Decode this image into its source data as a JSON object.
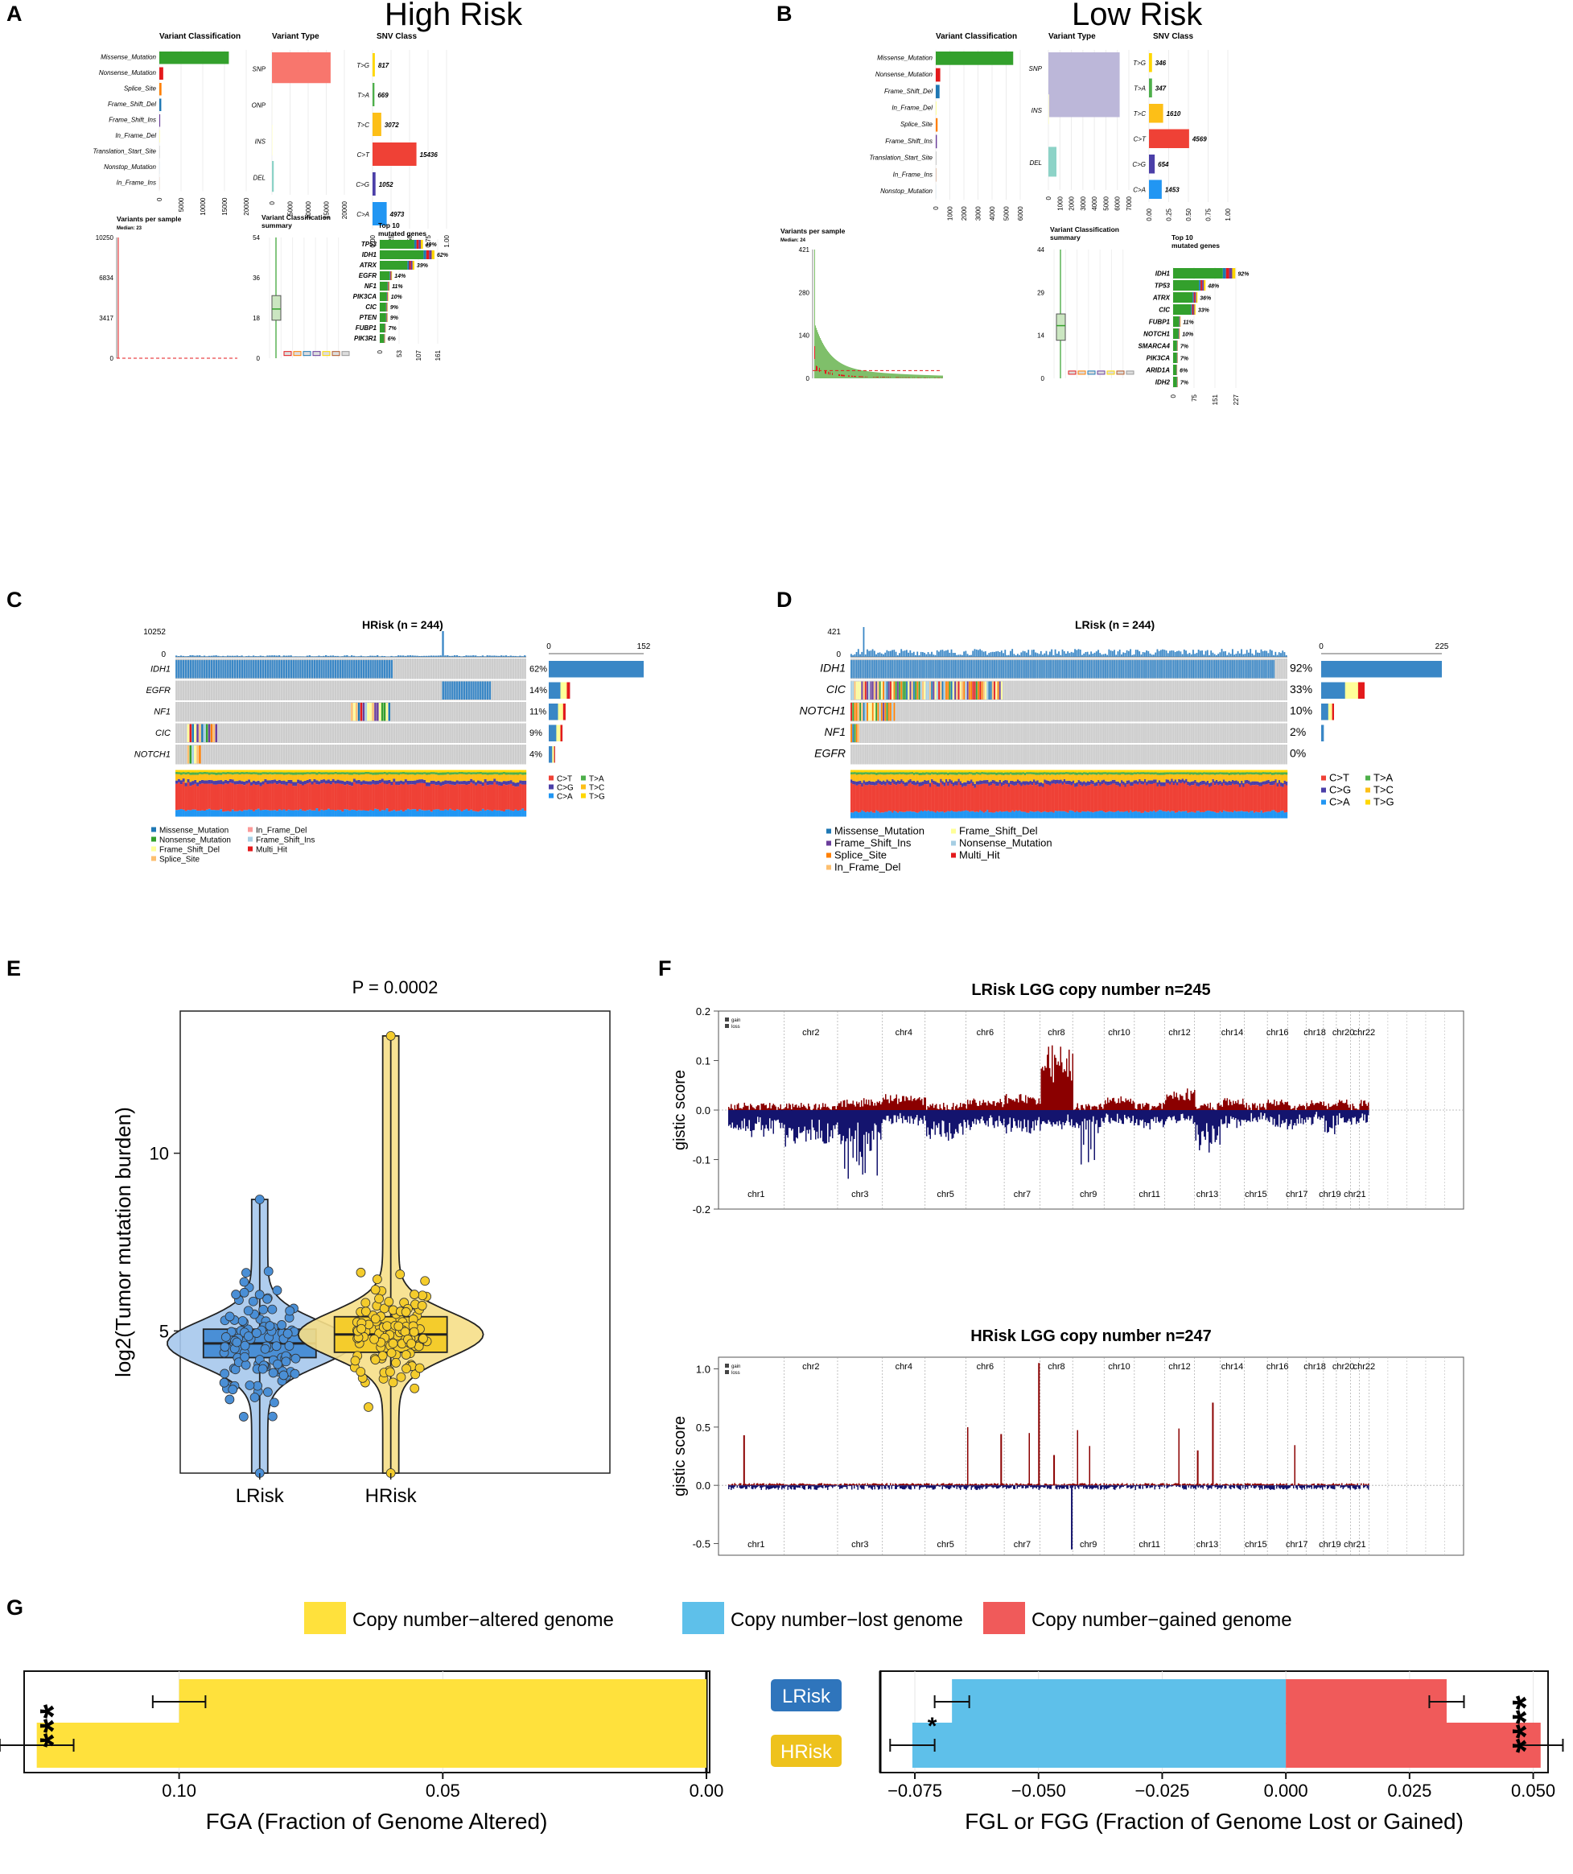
{
  "figure": {
    "panel_labels": [
      "A",
      "B",
      "C",
      "D",
      "E",
      "F",
      "G"
    ],
    "risk_titles": {
      "high": "High Risk",
      "low": "Low Risk"
    }
  },
  "subplot_titles": {
    "variant_classification": "Variant Classification",
    "variant_type": "Variant Type",
    "snv_class": "SNV Class",
    "variants_per_sample": "Variants per sample",
    "vc_summary_line1": "Variant Classification",
    "vc_summary_line2": "summary",
    "top10_line1": "Top 10",
    "top10_line2": "mutated genes"
  },
  "colors": {
    "Missense_Mutation": "#33a02c",
    "Nonsense_Mutation": "#e31a1c",
    "Splice_Site": "#ff7f00",
    "Frame_Shift_Del": "#1f78b4",
    "Frame_Shift_Ins": "#6a3d9a",
    "In_Frame_Del": "#ffff99",
    "In_Frame_Ins": "#b15928",
    "Translation_Start_Site": "#999999",
    "Nonstop_Mutation": "#a6cee3",
    "Multi_Hit": "#000000",
    "snp_high": "#f8766d",
    "snp_low": "#bcb7d9",
    "del": "#8dd3c7",
    "C>T": "#e41a1c",
    "C>G": "#377eb8",
    "C>A": "#4daf4a",
    "T>A": "#984ea3",
    "T>C": "#ff7f00",
    "T>G": "#ffff33",
    "oncoprint_bg": "#cccccc",
    "oncoprint_idh1": "#3a87c6",
    "fga": "#ffe13c",
    "lost": "#5ec0ea",
    "gained": "#f05a5a",
    "lrisk_box": "#4a8fd6",
    "hrisk_box": "#f4cc2c",
    "lrisk_badge": "#2f75bc",
    "hrisk_badge": "#eec21c",
    "gain": "#8b0000",
    "loss": "#14146e"
  },
  "panelA": {
    "title": "High Risk",
    "variant_classification": {
      "categories": [
        "Missense_Mutation",
        "Nonsense_Mutation",
        "Splice_Site",
        "Frame_Shift_Del",
        "Frame_Shift_Ins",
        "In_Frame_Del",
        "Translation_Start_Site",
        "Nonstop_Mutation",
        "In_Frame_Ins"
      ],
      "values": [
        16000,
        900,
        500,
        450,
        200,
        120,
        50,
        30,
        20
      ],
      "ticks": [
        "0",
        "5000",
        "10000",
        "15000",
        "20000"
      ],
      "xmax": 20000
    },
    "variant_type": {
      "categories": [
        "SNP",
        "ONP",
        "INS",
        "DEL"
      ],
      "values": [
        16200,
        20,
        150,
        500
      ],
      "ticks": [
        "0",
        "5000",
        "10000",
        "15000",
        "20000"
      ],
      "xmax": 20000
    },
    "snv_class": {
      "categories": [
        "T>G",
        "T>A",
        "T>C",
        "C>T",
        "C>G",
        "C>A"
      ],
      "values": [
        817,
        669,
        3072,
        15436,
        1052,
        4973
      ],
      "labels": [
        "817",
        "669",
        "3072",
        "15436",
        "1052",
        "4973"
      ],
      "ticks": [
        "0.00",
        "0.25",
        "0.50",
        "0.75",
        "1.00"
      ]
    },
    "vps": {
      "median": "Median: 23",
      "yticks": [
        "0",
        "3417",
        "6834",
        "10250"
      ],
      "ymax": 10250
    },
    "vcs": {
      "yticks": [
        "0",
        "18",
        "36",
        "54"
      ],
      "ymax": 54,
      "box": {
        "q1": 17,
        "med": 22,
        "q3": 28,
        "lo": 0,
        "hi": 54
      }
    },
    "top10": {
      "genes": [
        "TP53",
        "IDH1",
        "ATRX",
        "EGFR",
        "NF1",
        "PIK3CA",
        "CIC",
        "PTEN",
        "FUBP1",
        "PIK3R1"
      ],
      "pct": [
        "49%",
        "62%",
        "39%",
        "14%",
        "11%",
        "10%",
        "9%",
        "9%",
        "7%",
        "6%"
      ],
      "values": [
        120,
        152,
        96,
        34,
        27,
        24,
        22,
        22,
        17,
        15
      ],
      "xticks": [
        "0",
        "53",
        "107",
        "161"
      ],
      "xmax": 161
    }
  },
  "panelB": {
    "title": "Low Risk",
    "variant_classification": {
      "categories": [
        "Missense_Mutation",
        "Nonsense_Mutation",
        "Frame_Shift_Del",
        "In_Frame_Del",
        "Splice_Site",
        "Frame_Shift_Ins",
        "Translation_Start_Site",
        "In_Frame_Ins",
        "Nonstop_Mutation"
      ],
      "values": [
        5500,
        320,
        270,
        60,
        130,
        80,
        30,
        20,
        10
      ],
      "ticks": [
        "0",
        "1000",
        "2000",
        "3000",
        "4000",
        "5000",
        "6000"
      ],
      "xmax": 6000
    },
    "variant_type": {
      "categories": [
        "SNP",
        "INS",
        "DEL"
      ],
      "values": [
        6200,
        60,
        700
      ],
      "ticks": [
        "0",
        "1000",
        "2000",
        "3000",
        "4000",
        "5000",
        "6000",
        "7000"
      ],
      "xmax": 7000
    },
    "snv_class": {
      "categories": [
        "T>G",
        "T>A",
        "T>C",
        "C>T",
        "C>G",
        "C>A"
      ],
      "values": [
        346,
        347,
        1610,
        4569,
        654,
        1453
      ],
      "labels": [
        "346",
        "347",
        "1610",
        "4569",
        "654",
        "1453"
      ],
      "ticks": [
        "0.00",
        "0.25",
        "0.50",
        "0.75",
        "1.00"
      ]
    },
    "vps": {
      "median": "Median: 24",
      "yticks": [
        "0",
        "140",
        "280",
        "421"
      ],
      "ymax": 421
    },
    "vcs": {
      "yticks": [
        "0",
        "14",
        "29",
        "44"
      ],
      "ymax": 44,
      "box": {
        "q1": 13,
        "med": 18,
        "q3": 22,
        "lo": 0,
        "hi": 44
      }
    },
    "top10": {
      "genes": [
        "IDH1",
        "TP53",
        "ATRX",
        "CIC",
        "FUBP1",
        "NOTCH1",
        "SMARCA4",
        "PIK3CA",
        "ARID1A",
        "IDH2"
      ],
      "pct": [
        "92%",
        "48%",
        "36%",
        "33%",
        "11%",
        "10%",
        "7%",
        "7%",
        "6%",
        "7%"
      ],
      "values": [
        225,
        117,
        88,
        81,
        27,
        24,
        17,
        17,
        15,
        17
      ],
      "xticks": [
        "0",
        "75",
        "151",
        "227"
      ],
      "xmax": 227
    }
  },
  "panelC": {
    "title": "HRisk (n = 244)",
    "top_max": "10252",
    "top_zero": "0",
    "bar_ticks": [
      "0",
      "152"
    ],
    "genes": [
      "IDH1",
      "EGFR",
      "NF1",
      "CIC",
      "NOTCH1"
    ],
    "pct": [
      "62%",
      "14%",
      "11%",
      "9%",
      "4%"
    ],
    "values": [
      152,
      34,
      27,
      22,
      10
    ],
    "xmax": 152,
    "legend_snv": [
      "C>T",
      "C>G",
      "C>A",
      "T>A",
      "T>C",
      "T>G"
    ],
    "legend_var": [
      "Missense_Mutation",
      "Nonsense_Mutation",
      "Frame_Shift_Del",
      "Splice_Site",
      "In_Frame_Del",
      "Frame_Shift_Ins",
      "Multi_Hit"
    ]
  },
  "panelD": {
    "title": "LRisk (n = 244)",
    "top_max": "421",
    "top_zero": "0",
    "bar_ticks": [
      "0",
      "225"
    ],
    "genes": [
      "IDH1",
      "CIC",
      "NOTCH1",
      "NF1",
      "EGFR"
    ],
    "pct": [
      "92%",
      "33%",
      "10%",
      "2%",
      "0%"
    ],
    "values": [
      225,
      81,
      24,
      5,
      0
    ],
    "xmax": 225,
    "legend_snv": [
      "C>T",
      "C>G",
      "C>A",
      "T>A",
      "T>C",
      "T>G"
    ],
    "legend_var": [
      "Missense_Mutation",
      "Frame_Shift_Ins",
      "Splice_Site",
      "In_Frame_Del",
      "Frame_Shift_Del",
      "Nonsense_Mutation",
      "Multi_Hit"
    ]
  },
  "chart_data": [
    {
      "type": "box",
      "panel": "E",
      "title": "P = 0.0002",
      "ylabel": "log2(Tumor mutation burden)",
      "categories": [
        "LRisk",
        "HRisk"
      ],
      "yticks": [
        "5",
        "10"
      ],
      "ylim": [
        1,
        14
      ],
      "series": [
        {
          "name": "LRisk",
          "q1": 4.25,
          "median": 4.65,
          "q3": 5.05,
          "min": 1.0,
          "max": 8.7
        },
        {
          "name": "HRisk",
          "q1": 4.4,
          "median": 4.9,
          "q3": 5.4,
          "min": 1.0,
          "max": 13.3
        }
      ]
    },
    {
      "type": "area",
      "panel": "F-top",
      "title": "LRisk LGG copy number n=245",
      "ylabel": "gistic score",
      "yticks": [
        "-0.2",
        "-0.1",
        "0.0",
        "0.1",
        "0.2"
      ],
      "ylim": [
        -0.2,
        0.2
      ],
      "legend": [
        "gain",
        "loss"
      ],
      "chromosomes_top": [
        "chr2",
        "chr4",
        "chr6",
        "chr8",
        "chr10",
        "chr12",
        "chr14",
        "chr16",
        "chr18",
        "chr20",
        "chr22"
      ],
      "chromosomes_bottom": [
        "chr1",
        "chr3",
        "chr5",
        "chr7",
        "chr9",
        "chr11",
        "chr13",
        "chr15",
        "chr17",
        "chr19",
        "chr21"
      ]
    },
    {
      "type": "area",
      "panel": "F-bottom",
      "title": "HRisk LGG copy number n=247",
      "ylabel": "gistic score",
      "yticks": [
        "-0.5",
        "0.0",
        "0.5",
        "1.0"
      ],
      "ylim": [
        -0.6,
        1.1
      ],
      "legend": [
        "gain",
        "loss"
      ],
      "chromosomes_top": [
        "chr2",
        "chr4",
        "chr6",
        "chr8",
        "chr10",
        "chr12",
        "chr14",
        "chr16",
        "chr18",
        "chr20",
        "chr22"
      ],
      "chromosomes_bottom": [
        "chr1",
        "chr3",
        "chr5",
        "chr7",
        "chr9",
        "chr11",
        "chr13",
        "chr15",
        "chr17",
        "chr19",
        "chr21"
      ]
    },
    {
      "type": "bar",
      "panel": "G-left",
      "xlabel": "FGA (Fraction of Genome Altered)",
      "categories": [
        "LRisk",
        "HRisk"
      ],
      "series": [
        {
          "name": "Copy number−altered genome",
          "values": [
            0.1,
            0.127
          ],
          "errors": [
            0.005,
            0.007
          ]
        }
      ],
      "xticks": [
        "0.10",
        "0.05",
        "0.00"
      ],
      "xlim": [
        0.13,
        0
      ],
      "significance": "***"
    },
    {
      "type": "bar",
      "panel": "G-right",
      "xlabel": "FGL or FGG (Fraction of Genome Lost or Gained)",
      "categories": [
        "LRisk",
        "HRisk"
      ],
      "series": [
        {
          "name": "Copy number−lost genome",
          "values": [
            -0.0675,
            -0.0755
          ],
          "errors": [
            0.0035,
            0.0045
          ]
        },
        {
          "name": "Copy number−gained genome",
          "values": [
            0.0325,
            0.0515
          ],
          "errors": [
            0.0035,
            0.0045
          ]
        }
      ],
      "xticks": [
        "−0.075",
        "−0.050",
        "−0.025",
        "0.000",
        "0.025",
        "0.050"
      ],
      "xlim": [
        -0.082,
        0.053
      ],
      "significance": [
        "*",
        "****"
      ]
    }
  ],
  "panelG": {
    "legend": [
      "Copy number−altered genome",
      "Copy number−lost genome",
      "Copy number−gained genome"
    ],
    "badges": [
      "LRisk",
      "HRisk"
    ]
  }
}
